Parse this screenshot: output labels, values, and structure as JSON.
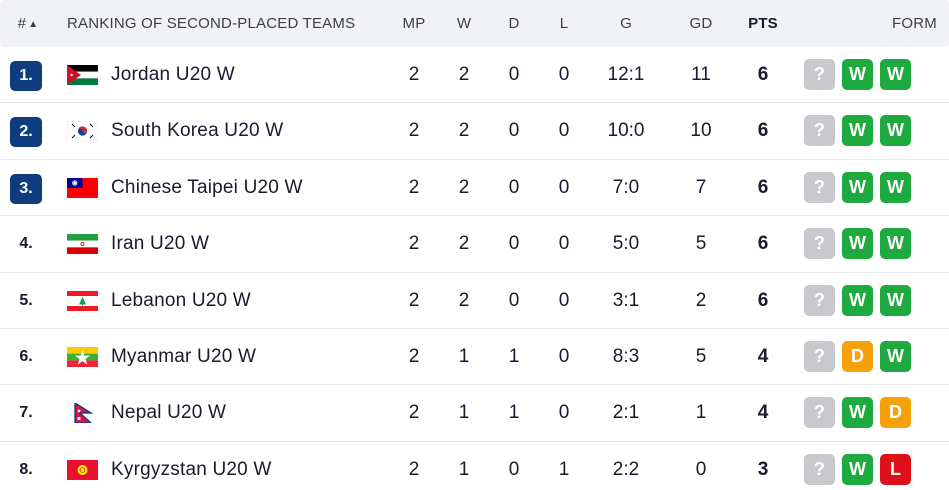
{
  "header": {
    "rank": "#",
    "sort_indicator": "▲",
    "title": "RANKING OF SECOND-PLACED TEAMS",
    "mp": "MP",
    "w": "W",
    "d": "D",
    "l": "L",
    "g": "G",
    "gd": "GD",
    "pts": "PTS",
    "form": "FORM"
  },
  "colors": {
    "rank_badge": "#0d3d7e",
    "form_win": "#1faa3f",
    "form_draw": "#f5a20a",
    "form_loss": "#e0101a",
    "form_unknown": "#c8c9cc"
  },
  "rows": [
    {
      "rank": "1.",
      "badge": true,
      "flag": "jordan-flag-icon",
      "team": "Jordan U20 W",
      "mp": "2",
      "w": "2",
      "d": "0",
      "l": "0",
      "g": "12:1",
      "gd": "11",
      "pts": "6",
      "form": [
        "?",
        "W",
        "W"
      ]
    },
    {
      "rank": "2.",
      "badge": true,
      "flag": "south-korea-flag-icon",
      "team": "South Korea U20 W",
      "mp": "2",
      "w": "2",
      "d": "0",
      "l": "0",
      "g": "10:0",
      "gd": "10",
      "pts": "6",
      "form": [
        "?",
        "W",
        "W"
      ]
    },
    {
      "rank": "3.",
      "badge": true,
      "flag": "chinese-taipei-flag-icon",
      "team": "Chinese Taipei U20 W",
      "mp": "2",
      "w": "2",
      "d": "0",
      "l": "0",
      "g": "7:0",
      "gd": "7",
      "pts": "6",
      "form": [
        "?",
        "W",
        "W"
      ]
    },
    {
      "rank": "4.",
      "badge": false,
      "flag": "iran-flag-icon",
      "team": "Iran U20 W",
      "mp": "2",
      "w": "2",
      "d": "0",
      "l": "0",
      "g": "5:0",
      "gd": "5",
      "pts": "6",
      "form": [
        "?",
        "W",
        "W"
      ]
    },
    {
      "rank": "5.",
      "badge": false,
      "flag": "lebanon-flag-icon",
      "team": "Lebanon U20 W",
      "mp": "2",
      "w": "2",
      "d": "0",
      "l": "0",
      "g": "3:1",
      "gd": "2",
      "pts": "6",
      "form": [
        "?",
        "W",
        "W"
      ]
    },
    {
      "rank": "6.",
      "badge": false,
      "flag": "myanmar-flag-icon",
      "team": "Myanmar U20 W",
      "mp": "2",
      "w": "1",
      "d": "1",
      "l": "0",
      "g": "8:3",
      "gd": "5",
      "pts": "4",
      "form": [
        "?",
        "D",
        "W"
      ]
    },
    {
      "rank": "7.",
      "badge": false,
      "flag": "nepal-flag-icon",
      "team": "Nepal U20 W",
      "mp": "2",
      "w": "1",
      "d": "1",
      "l": "0",
      "g": "2:1",
      "gd": "1",
      "pts": "4",
      "form": [
        "?",
        "W",
        "D"
      ]
    },
    {
      "rank": "8.",
      "badge": false,
      "flag": "kyrgyzstan-flag-icon",
      "team": "Kyrgyzstan U20 W",
      "mp": "2",
      "w": "1",
      "d": "0",
      "l": "1",
      "g": "2:2",
      "gd": "0",
      "pts": "3",
      "form": [
        "?",
        "W",
        "L"
      ]
    }
  ]
}
